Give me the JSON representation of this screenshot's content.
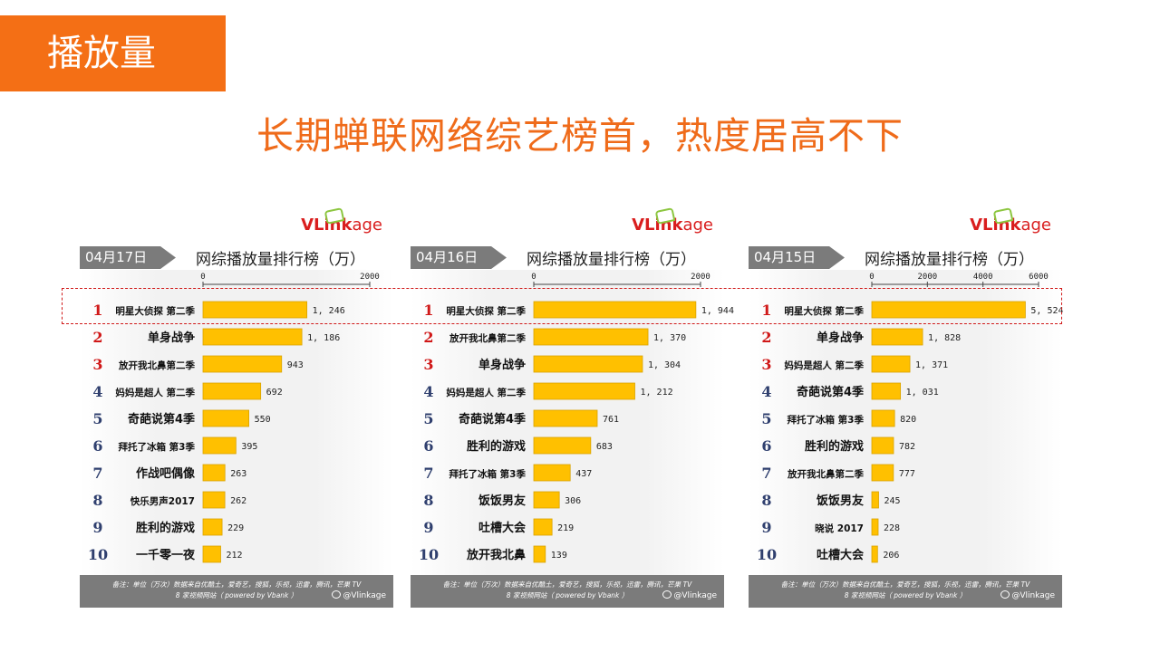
{
  "section_tag": "播放量",
  "headline": "长期蝉联网络综艺榜首，热度居高不下",
  "brand": {
    "part1": "VLink",
    "part2": "age"
  },
  "footer": {
    "line1": "备注：单位（万次）数据来自优酷土，爱奇艺，搜狐，乐视，迅雷，腾讯，芒果 TV",
    "line2": "8 家视频网站（ powered by Vbank ）",
    "weibo": "@Vlinkage"
  },
  "chart_data": [
    {
      "type": "bar",
      "date": "04月17日",
      "title": "网综播放量排行榜（万）",
      "ticks": [
        0,
        2000
      ],
      "tick_labels": [
        "0",
        "2000"
      ],
      "xlim": [
        0,
        2000
      ],
      "ranks": [
        "1",
        "2",
        "3",
        "4",
        "5",
        "6",
        "7",
        "8",
        "9",
        "10"
      ],
      "categories": [
        "明星大侦探 第二季",
        "单身战争",
        "放开我北鼻第二季",
        "妈妈是超人 第二季",
        "奇葩说第4季",
        "拜托了冰箱 第3季",
        "作战吧偶像",
        "快乐男声2017",
        "胜利的游戏",
        "一千零一夜"
      ],
      "values": [
        1246,
        1186,
        943,
        692,
        550,
        395,
        263,
        262,
        229,
        212
      ],
      "value_labels": [
        "1, 246",
        "1, 186",
        "943",
        "692",
        "550",
        "395",
        "263",
        "262",
        "229",
        "212"
      ]
    },
    {
      "type": "bar",
      "date": "04月16日",
      "title": "网综播放量排行榜（万）",
      "ticks": [
        0,
        2000
      ],
      "tick_labels": [
        "0",
        "2000"
      ],
      "xlim": [
        0,
        2000
      ],
      "ranks": [
        "1",
        "2",
        "3",
        "4",
        "5",
        "6",
        "7",
        "8",
        "9",
        "10"
      ],
      "categories": [
        "明星大侦探 第二季",
        "放开我北鼻第二季",
        "单身战争",
        "妈妈是超人 第二季",
        "奇葩说第4季",
        "胜利的游戏",
        "拜托了冰箱 第3季",
        "饭饭男友",
        "吐槽大会",
        "放开我北鼻"
      ],
      "values": [
        1944,
        1370,
        1304,
        1212,
        761,
        683,
        437,
        306,
        219,
        139
      ],
      "value_labels": [
        "1, 944",
        "1, 370",
        "1, 304",
        "1, 212",
        "761",
        "683",
        "437",
        "306",
        "219",
        "139"
      ]
    },
    {
      "type": "bar",
      "date": "04月15日",
      "title": "网综播放量排行榜（万）",
      "ticks": [
        0,
        2000,
        4000,
        6000
      ],
      "tick_labels": [
        "0",
        "2000",
        "4000",
        "6000"
      ],
      "xlim": [
        0,
        6000
      ],
      "ranks": [
        "1",
        "2",
        "3",
        "4",
        "5",
        "6",
        "7",
        "8",
        "9",
        "10"
      ],
      "categories": [
        "明星大侦探 第二季",
        "单身战争",
        "妈妈是超人 第二季",
        "奇葩说第4季",
        "拜托了冰箱 第3季",
        "胜利的游戏",
        "放开我北鼻第二季",
        "饭饭男友",
        "晓说 2017",
        "吐槽大会"
      ],
      "values": [
        5524,
        1828,
        1371,
        1031,
        820,
        782,
        777,
        245,
        228,
        206
      ],
      "value_labels": [
        "5, 524",
        "1, 828",
        "1, 371",
        "1, 031",
        "820",
        "782",
        "777",
        "245",
        "228",
        "206"
      ]
    }
  ],
  "colors": {
    "bar": "#ffc000",
    "bar_edge": "#d9a300",
    "rank_red": "#d01818",
    "rank_blue": "#2f3f6e",
    "accent": "#f46f15"
  }
}
